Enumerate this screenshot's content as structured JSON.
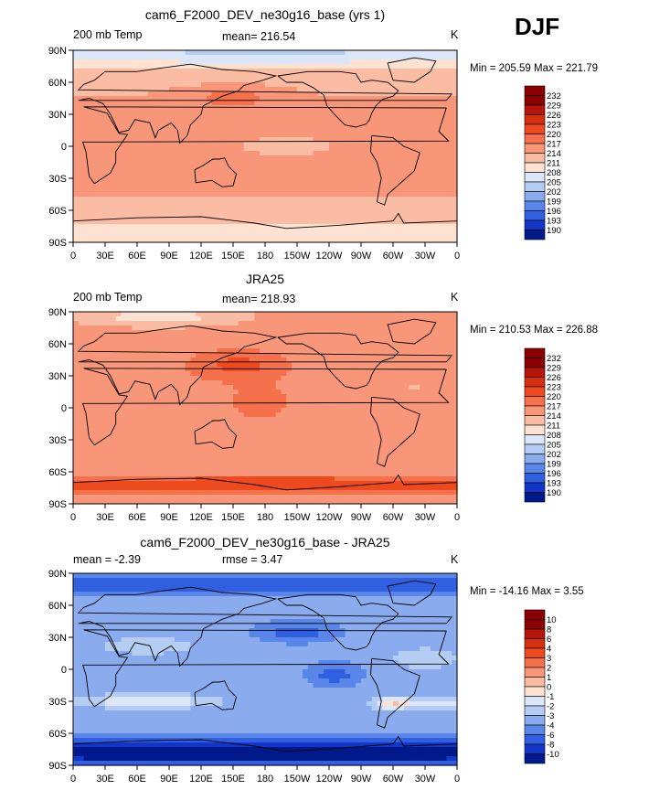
{
  "season": "DJF",
  "chart_data": [
    {
      "type": "heatmap",
      "title": "cam6_F2000_DEV_ne30g16_base (yrs 1)",
      "left_label": "200 mb Temp",
      "stat_text": "mean= 216.54",
      "units": "K",
      "minmax_text": "Min = 205.59 Max = 221.79",
      "min": 205.59,
      "max": 221.79,
      "mean": 216.54,
      "lon_ticks": [
        "0",
        "30E",
        "60E",
        "90E",
        "120E",
        "150E",
        "180",
        "150W",
        "120W",
        "90W",
        "60W",
        "30W",
        "0"
      ],
      "lat_ticks": [
        "90N",
        "60N",
        "30N",
        "0",
        "30S",
        "60S",
        "90S"
      ],
      "levels": [
        "232",
        "229",
        "226",
        "223",
        "220",
        "217",
        "214",
        "211",
        "208",
        "205",
        "202",
        "199",
        "196",
        "193",
        "190"
      ]
    },
    {
      "type": "heatmap",
      "title": "JRA25",
      "left_label": "200 mb Temp",
      "stat_text": "mean= 218.93",
      "units": "K",
      "minmax_text": "Min = 210.53 Max = 226.88",
      "min": 210.53,
      "max": 226.88,
      "mean": 218.93,
      "lon_ticks": [
        "0",
        "30E",
        "60E",
        "90E",
        "120E",
        "150E",
        "180",
        "150W",
        "120W",
        "90W",
        "60W",
        "30W",
        "0"
      ],
      "lat_ticks": [
        "90N",
        "60N",
        "30N",
        "0",
        "30S",
        "60S",
        "90S"
      ],
      "levels": [
        "232",
        "229",
        "226",
        "223",
        "220",
        "217",
        "214",
        "211",
        "208",
        "205",
        "202",
        "199",
        "196",
        "193",
        "190"
      ]
    },
    {
      "type": "heatmap",
      "title": "cam6_F2000_DEV_ne30g16_base - JRA25",
      "left_label": "mean =   -2.39",
      "stat_text": "rmse =    3.47",
      "units": "K",
      "minmax_text": "Min = -14.16 Max =    3.55",
      "min": -14.16,
      "max": 3.55,
      "mean": -2.39,
      "rmse": 3.47,
      "lon_ticks": [
        "0",
        "30E",
        "60E",
        "90E",
        "120E",
        "150E",
        "180",
        "150W",
        "120W",
        "90W",
        "60W",
        "30W",
        "0"
      ],
      "lat_ticks": [
        "90N",
        "60N",
        "30N",
        "0",
        "30S",
        "60S",
        "90S"
      ],
      "levels": [
        "10",
        "8",
        "6",
        "4",
        "3",
        "2",
        "1",
        "0",
        "-1",
        "-2",
        "-3",
        "-4",
        "-6",
        "-8",
        "-10"
      ]
    }
  ],
  "colors": {
    "scale": [
      "#8b0000",
      "#b5150b",
      "#d7300f",
      "#ee4a1f",
      "#f4714b",
      "#f8967a",
      "#fbbca4",
      "#fde2d2",
      "#dbe7f8",
      "#b5cdf3",
      "#8aacee",
      "#5a86ea",
      "#3060e0",
      "#1237c8",
      "#001a8c"
    ]
  }
}
